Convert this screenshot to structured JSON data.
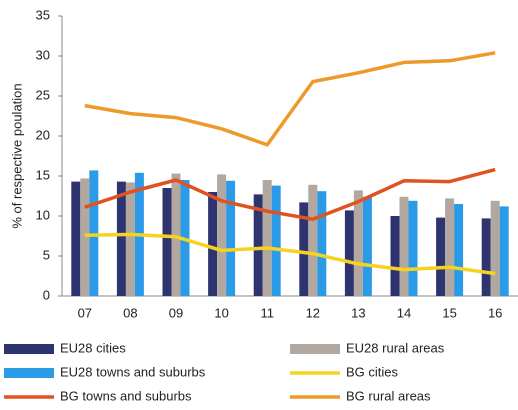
{
  "chart_data": {
    "type": "bar",
    "y_label": "% of respective poulation",
    "categories": [
      "07",
      "08",
      "09",
      "10",
      "11",
      "12",
      "13",
      "14",
      "15",
      "16"
    ],
    "ylim": [
      0,
      35
    ],
    "yticks": [
      0,
      5,
      10,
      15,
      20,
      25,
      30,
      35
    ],
    "grid": false,
    "series": [
      {
        "name": "EU28 cities",
        "type": "bar",
        "color": "#2e3470",
        "values": [
          14.3,
          14.3,
          13.5,
          13.0,
          12.7,
          11.7,
          10.7,
          10.0,
          9.8,
          9.7
        ]
      },
      {
        "name": "EU28 rural areas",
        "type": "bar",
        "color": "#b3a89f",
        "values": [
          14.7,
          14.2,
          15.3,
          15.2,
          14.5,
          13.9,
          13.2,
          12.4,
          12.2,
          11.9
        ]
      },
      {
        "name": "EU28 towns and suburbs",
        "type": "bar",
        "color": "#2b9be8",
        "values": [
          15.7,
          15.4,
          14.5,
          14.4,
          13.8,
          13.1,
          12.4,
          11.9,
          11.5,
          11.2
        ]
      },
      {
        "name": "BG cities",
        "type": "line",
        "color": "#f7d320",
        "values": [
          7.6,
          7.7,
          7.4,
          5.7,
          6.0,
          5.3,
          4.0,
          3.3,
          3.6,
          2.8
        ]
      },
      {
        "name": "BG towns and suburbs",
        "type": "line",
        "color": "#e0521f",
        "values": [
          11.1,
          13.0,
          14.5,
          11.9,
          10.6,
          9.6,
          11.8,
          14.4,
          14.3,
          15.8
        ]
      },
      {
        "name": "BG rural areas",
        "type": "line",
        "color": "#ee9a2a",
        "values": [
          23.8,
          22.8,
          22.3,
          20.9,
          18.9,
          26.8,
          27.9,
          29.2,
          29.4,
          30.4
        ]
      }
    ]
  }
}
